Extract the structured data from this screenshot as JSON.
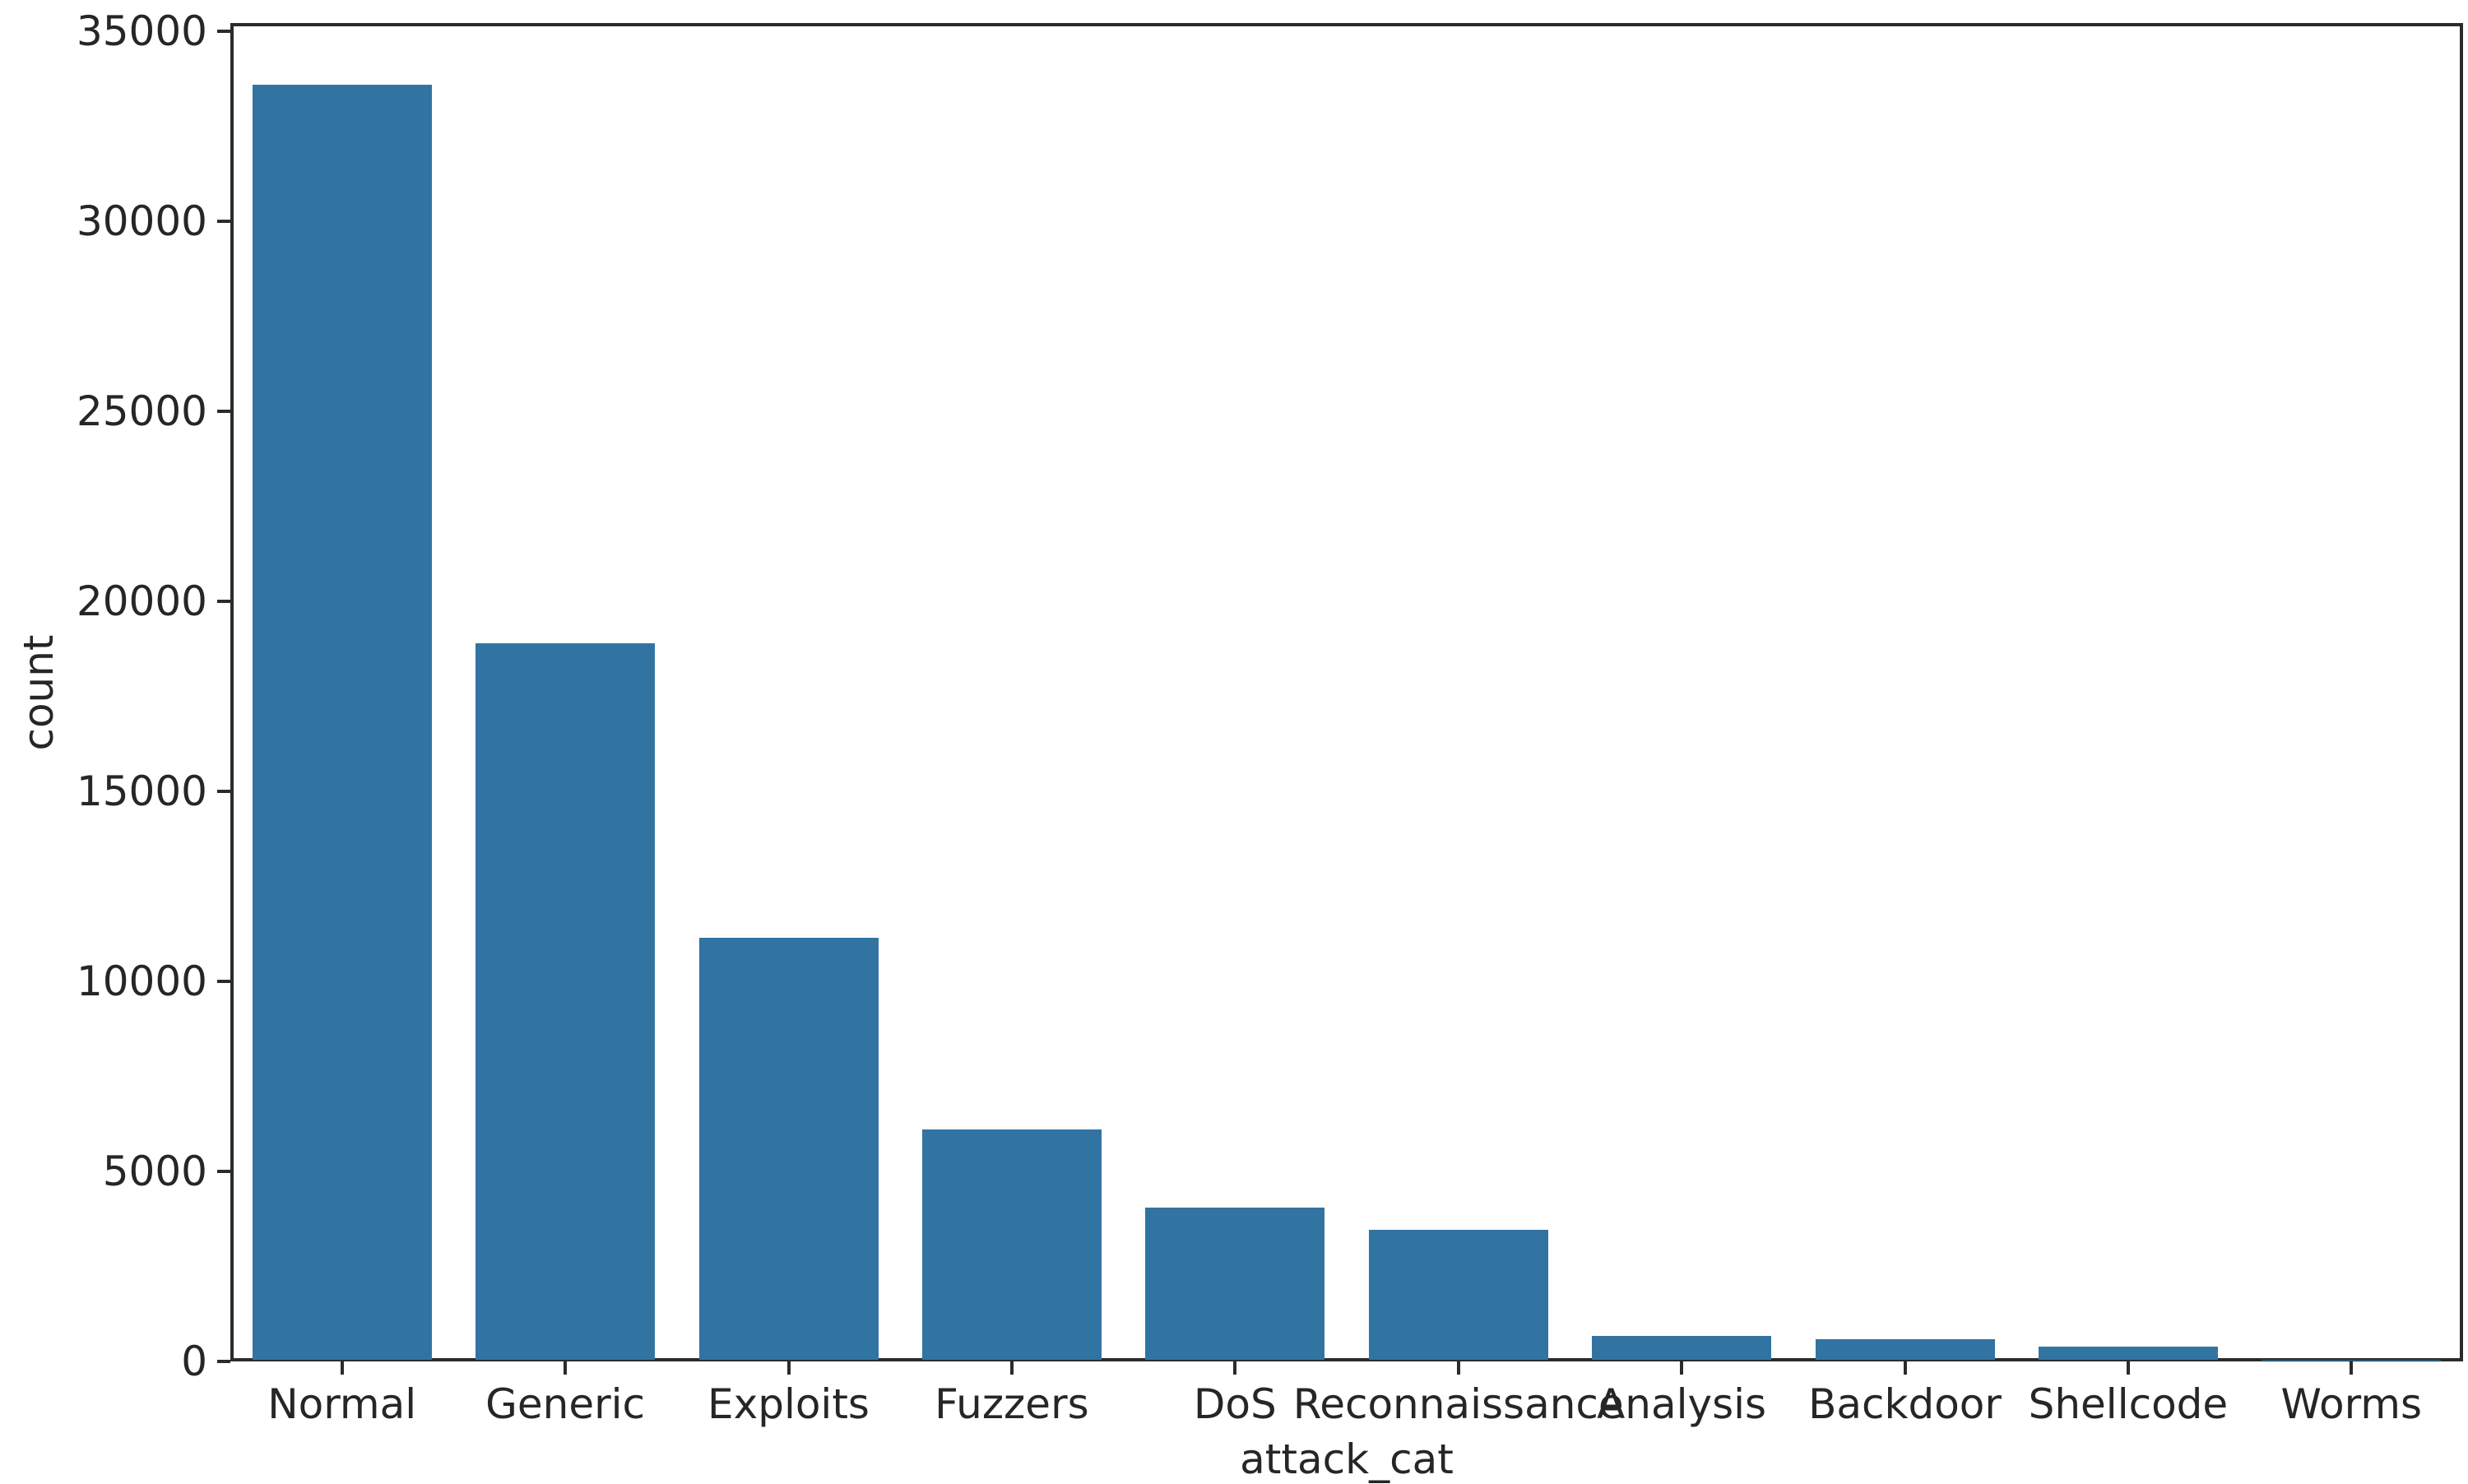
{
  "figure": {
    "background_color": "#ffffff"
  },
  "chart_data": {
    "type": "bar",
    "title": "",
    "xlabel": "attack_cat",
    "ylabel": "count",
    "categories": [
      "Normal",
      "Generic",
      "Exploits",
      "Fuzzers",
      "DoS",
      "Reconnaissance",
      "Analysis",
      "Backdoor",
      "Shellcode",
      "Worms"
    ],
    "values": [
      33600,
      18900,
      11150,
      6100,
      4050,
      3460,
      680,
      590,
      380,
      50
    ],
    "yticks": [
      0,
      5000,
      10000,
      15000,
      20000,
      25000,
      30000,
      35000
    ],
    "ylim": [
      0,
      35300
    ],
    "grid": false,
    "legend_position": "none",
    "bar_color": "#3274a1",
    "spine_color": "#2b2b2b",
    "text_color": "#262626"
  }
}
